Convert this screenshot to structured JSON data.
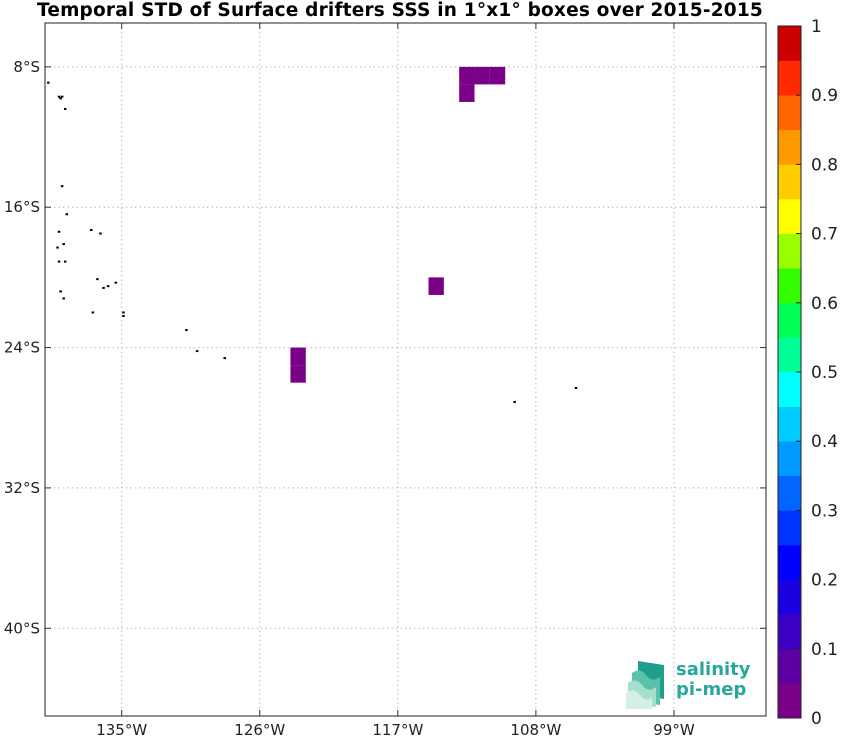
{
  "title": "Temporal STD of Surface drifters SSS in 1°x1° boxes over 2015-2015",
  "logo": {
    "line1": "salinity",
    "line2": "pi-mep",
    "icon": "wave-logo-icon"
  },
  "colors": {
    "background": "#ffffff",
    "grid": "#b9b9b9",
    "land": "#000000",
    "data_cells": "#7a0088"
  },
  "map": {
    "lon_range": [
      -140,
      -93
    ],
    "lat_range": [
      -45,
      -5.5
    ],
    "lon_ticks": [
      {
        "value": -135,
        "label": "135°W"
      },
      {
        "value": -126,
        "label": "126°W"
      },
      {
        "value": -117,
        "label": "117°W"
      },
      {
        "value": -108,
        "label": "108°W"
      },
      {
        "value": -99,
        "label": "99°W"
      }
    ],
    "lat_ticks": [
      {
        "value": -8,
        "label": "8°S"
      },
      {
        "value": -16,
        "label": "16°S"
      },
      {
        "value": -24,
        "label": "24°S"
      },
      {
        "value": -32,
        "label": "32°S"
      },
      {
        "value": -40,
        "label": "40°S"
      }
    ],
    "grid": true,
    "data_cells": [
      {
        "lon": [
          -113,
          -112
        ],
        "lat": [
          -8,
          -9
        ],
        "value": 0.02
      },
      {
        "lon": [
          -113,
          -112
        ],
        "lat": [
          -9,
          -10
        ],
        "value": 0.02
      },
      {
        "lon": [
          -112,
          -111
        ],
        "lat": [
          -8,
          -9
        ],
        "value": 0.02
      },
      {
        "lon": [
          -111,
          -110
        ],
        "lat": [
          -8,
          -9
        ],
        "value": 0.02
      },
      {
        "lon": [
          -115,
          -114
        ],
        "lat": [
          -20,
          -21
        ],
        "value": 0.02
      },
      {
        "lon": [
          -124,
          -123
        ],
        "lat": [
          -24,
          -25
        ],
        "value": 0.02
      },
      {
        "lon": [
          -124,
          -123
        ],
        "lat": [
          -25,
          -26
        ],
        "value": 0.02
      }
    ],
    "land_points": [
      [
        -139.8,
        -8.9
      ],
      [
        -139.1,
        -9.7
      ],
      [
        -139.0,
        -9.8
      ],
      [
        -138.9,
        -9.7
      ],
      [
        -138.7,
        -10.4
      ],
      [
        -138.9,
        -14.8
      ],
      [
        -138.6,
        -16.4
      ],
      [
        -139.1,
        -17.4
      ],
      [
        -138.8,
        -18.1
      ],
      [
        -139.2,
        -18.3
      ],
      [
        -137.0,
        -17.3
      ],
      [
        -136.4,
        -17.5
      ],
      [
        -139.1,
        -19.1
      ],
      [
        -138.7,
        -19.1
      ],
      [
        -136.6,
        -20.1
      ],
      [
        -135.9,
        -20.5
      ],
      [
        -136.2,
        -20.6
      ],
      [
        -135.4,
        -20.3
      ],
      [
        -139.0,
        -20.8
      ],
      [
        -138.8,
        -21.2
      ],
      [
        -136.9,
        -22.0
      ],
      [
        -134.9,
        -22.0
      ],
      [
        -134.9,
        -22.2
      ],
      [
        -130.8,
        -23.0
      ],
      [
        -130.1,
        -24.2
      ],
      [
        -128.3,
        -24.6
      ],
      [
        -109.4,
        -27.1
      ],
      [
        -105.4,
        -26.3
      ]
    ]
  },
  "colorbar": {
    "min": 0,
    "max": 1,
    "steps": 20,
    "colors": [
      "#7a0088",
      "#5c00a3",
      "#3c00c2",
      "#1a00e0",
      "#0000ff",
      "#0033ff",
      "#0066ff",
      "#0099ff",
      "#00ccff",
      "#00ffff",
      "#00ff99",
      "#00ff55",
      "#33ff00",
      "#99ff00",
      "#ffff00",
      "#ffcc00",
      "#ff9900",
      "#ff6600",
      "#ff2a00",
      "#cc0000"
    ],
    "tick_labels": [
      "0",
      "0.1",
      "0.2",
      "0.3",
      "0.4",
      "0.5",
      "0.6",
      "0.7",
      "0.8",
      "0.9",
      "1"
    ]
  }
}
